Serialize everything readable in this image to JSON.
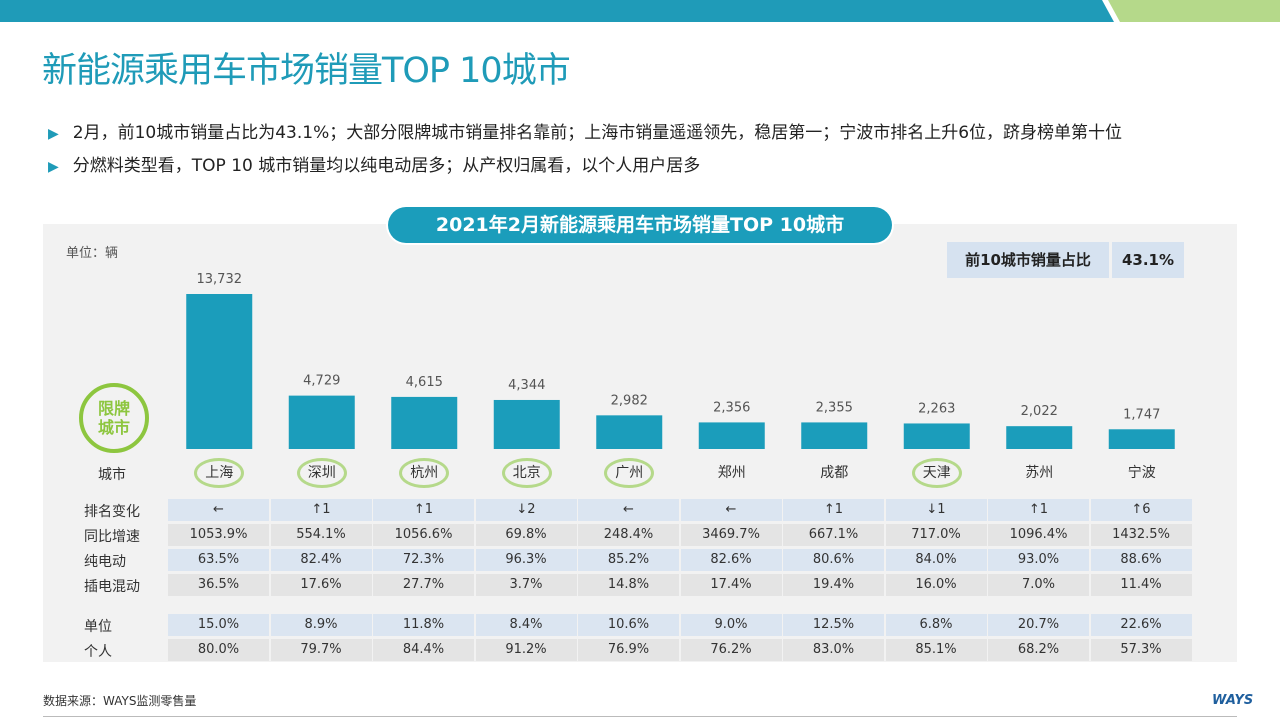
{
  "page": {
    "title": "新能源乘用车市场销量TOP 10城市",
    "bullets": [
      "2月，前10城市销量占比为43.1%；大部分限牌城市销量排名靠前；上海市销量遥遥领先，稳居第一；宁波市排名上升6位，跻身榜单第十位",
      "分燃料类型看，TOP 10 城市销量均以纯电动居多；从产权归属看，以个人用户居多"
    ],
    "source": "数据来源：WAYS监测零售量",
    "logo": "WAYS"
  },
  "colors": {
    "brand": "#1f9bb8",
    "bar": "#1b9dbb",
    "limit_ring": "#8dc63f",
    "row_blue": "#dbe5f1",
    "row_gray": "#e4e4e4"
  },
  "icons": {
    "bullet": "right-triangle-icon",
    "limit": "limit-plate-badge-icon"
  },
  "chart_data": {
    "type": "bar",
    "title": "2021年2月新能源乘用车市场销量TOP 10城市",
    "unit_note": "单位：辆",
    "xlabel": "城市",
    "categories": [
      "上海",
      "深圳",
      "杭州",
      "北京",
      "广州",
      "郑州",
      "成都",
      "天津",
      "苏州",
      "宁波"
    ],
    "values": [
      13732,
      4729,
      4615,
      4344,
      2982,
      2356,
      2355,
      2263,
      2022,
      1747
    ],
    "value_labels": [
      "13,732",
      "4,729",
      "4,615",
      "4,344",
      "2,982",
      "2,356",
      "2,355",
      "2,263",
      "2,022",
      "1,747"
    ],
    "ylim": [
      0,
      13732
    ],
    "limited_cities": [
      "上海",
      "深圳",
      "杭州",
      "北京",
      "广州",
      "天津"
    ],
    "limit_badge": [
      "限牌",
      "城市"
    ],
    "share": {
      "label": "前10城市销量占比",
      "value": "43.1%"
    },
    "table": [
      {
        "label": "排名变化",
        "style": "blue",
        "values": [
          "←",
          "↑1",
          "↑1",
          "↓2",
          "←",
          "←",
          "↑1",
          "↓1",
          "↑1",
          "↑6"
        ]
      },
      {
        "label": "同比增速",
        "style": "gray",
        "values": [
          "1053.9%",
          "554.1%",
          "1056.6%",
          "69.8%",
          "248.4%",
          "3469.7%",
          "667.1%",
          "717.0%",
          "1096.4%",
          "1432.5%"
        ]
      },
      {
        "label": "纯电动",
        "style": "blue",
        "values": [
          "63.5%",
          "82.4%",
          "72.3%",
          "96.3%",
          "85.2%",
          "82.6%",
          "80.6%",
          "84.0%",
          "93.0%",
          "88.6%"
        ]
      },
      {
        "label": "插电混动",
        "style": "gray",
        "values": [
          "36.5%",
          "17.6%",
          "27.7%",
          "3.7%",
          "14.8%",
          "17.4%",
          "19.4%",
          "16.0%",
          "7.0%",
          "11.4%"
        ]
      },
      {
        "label": "单位",
        "style": "blue",
        "values": [
          "15.0%",
          "8.9%",
          "11.8%",
          "8.4%",
          "10.6%",
          "9.0%",
          "12.5%",
          "6.8%",
          "20.7%",
          "22.6%"
        ]
      },
      {
        "label": "个人",
        "style": "gray",
        "values": [
          "80.0%",
          "79.7%",
          "84.4%",
          "91.2%",
          "76.9%",
          "76.2%",
          "83.0%",
          "85.1%",
          "68.2%",
          "57.3%"
        ]
      }
    ]
  }
}
